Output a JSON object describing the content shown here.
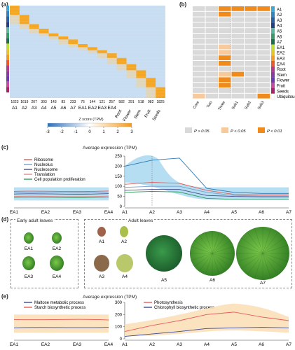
{
  "panel_a": {
    "label": "(a)",
    "counts": [
      "1623",
      "1619",
      "207",
      "303",
      "143",
      "83",
      "233",
      "76",
      "144",
      "121",
      "257",
      "582",
      "291",
      "518",
      "982",
      "1825"
    ],
    "groups": [
      "A1",
      "A2",
      "A3",
      "A4",
      "A5",
      "A6",
      "A7",
      "EA1",
      "EA2",
      "EA3",
      "EA4",
      "Root",
      "Flower",
      "Stem",
      "Fruit",
      "Seeds"
    ],
    "colorbar_title": "Z score (TPM)",
    "colorbar_ticks": [
      "-3",
      "-2",
      "-1",
      "0",
      "1",
      "2",
      "3"
    ]
  },
  "panel_b": {
    "label": "(b)",
    "rows": [
      "A1",
      "A2",
      "A3",
      "A4",
      "A5",
      "A6",
      "A7",
      "EA1",
      "EA2",
      "EA3",
      "EA4",
      "Root",
      "Stem",
      "Flower",
      "Fruit",
      "Seeds",
      "Ubiquitous"
    ],
    "row_colors": [
      "#3aa9d6",
      "#2f86c0",
      "#2a5fa1",
      "#243f86",
      "#5ab6a0",
      "#3a9a6a",
      "#1e6e4c",
      "#c0de3a",
      "#e8c42a",
      "#f29d2a",
      "#ea5a2a",
      "#b33a8a",
      "#8a3aa0",
      "#6a3ab5",
      "#c84aa0",
      "#a9226a",
      "#ffffff"
    ],
    "columns": [
      "Core",
      "Two",
      "Three",
      "Sub1",
      "Sub2",
      "Sub3"
    ],
    "legend": [
      "P > 0.05",
      "P < 0.05",
      "P < 0.01"
    ],
    "legend_colors": [
      "#d9d9d9",
      "#f8c99a",
      "#f08a1a"
    ]
  },
  "panel_c": {
    "label": "(c)",
    "title": "Average expression (TPM)",
    "legend": [
      {
        "name": "Ribosome",
        "color": "#e0605a"
      },
      {
        "name": "Nucleolus",
        "color": "#7a9ec8"
      },
      {
        "name": "Nucleosome",
        "color": "#4a4e8a"
      },
      {
        "name": "Translation",
        "color": "#e28a8a"
      },
      {
        "name": "Cell population proliferation",
        "color": "#2a9a5a"
      }
    ],
    "y_ticks": [
      "0",
      "50",
      "100",
      "150",
      "200",
      "250"
    ],
    "x_left": [
      "EA1",
      "EA2",
      "EA3",
      "EA4"
    ],
    "x_right": [
      "A1",
      "A2",
      "A3",
      "A4",
      "A5",
      "A6",
      "A7"
    ]
  },
  "panel_d": {
    "label": "(d)",
    "early_title": "Early adult leaves",
    "adult_title": "Adult leaves",
    "early_leaves": [
      "EA1",
      "EA2",
      "EA3",
      "EA4"
    ],
    "adult_leaves": [
      "A1",
      "A2",
      "A3",
      "A4",
      "A5",
      "A6",
      "A7"
    ]
  },
  "panel_e": {
    "label": "(e)",
    "title": "Average expression (TPM)",
    "legend_left": [
      {
        "name": "Maltose metabolic process",
        "color": "#3a4a9a"
      },
      {
        "name": "Starch biosynthetic process",
        "color": "#e85a5a"
      }
    ],
    "legend_right": [
      {
        "name": "Photosynthesis",
        "color": "#e85a5a"
      },
      {
        "name": "Chlorophyll biosynthetic process",
        "color": "#3a4a9a"
      }
    ],
    "y_ticks": [
      "0",
      "100",
      "200",
      "300"
    ],
    "x_left": [
      "EA1",
      "EA2",
      "EA3",
      "EA4"
    ],
    "x_right": [
      "A1",
      "A2",
      "A3",
      "A4",
      "A5",
      "A6",
      "A7"
    ]
  }
}
